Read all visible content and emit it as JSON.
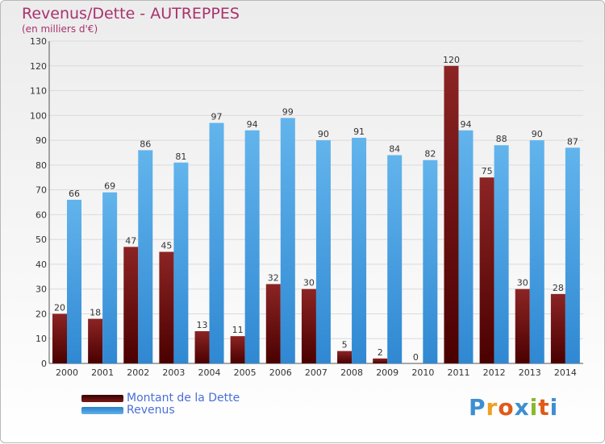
{
  "header": {
    "title": "Revenus/Dette - AUTREPPES",
    "subtitle": "(en milliers d'€)"
  },
  "legend": {
    "debt_label": "Montant de la Dette",
    "revenue_label": "Revenus"
  },
  "logo": {
    "letters": [
      "P",
      "r",
      "o",
      "x",
      "i",
      "t",
      "i"
    ],
    "colors": [
      "#3d8fd0",
      "#f0a020",
      "#e05a1a",
      "#3d8fd0",
      "#88b830",
      "#e05a1a",
      "#3d8fd0"
    ]
  },
  "colors": {
    "debt_top": "#8c2424",
    "debt_bottom": "#4a0000",
    "revenue_top": "#62b4ec",
    "revenue_bottom": "#2f88d2",
    "grid": "#dadada",
    "axis_text": "#333333"
  },
  "chart_data": {
    "type": "bar",
    "categories": [
      "2000",
      "2001",
      "2002",
      "2003",
      "2004",
      "2005",
      "2006",
      "2007",
      "2008",
      "2009",
      "2010",
      "2011",
      "2012",
      "2013",
      "2014"
    ],
    "series": [
      {
        "name": "Montant de la Dette",
        "values": [
          20,
          18,
          47,
          45,
          13,
          11,
          32,
          30,
          5,
          2,
          0,
          120,
          75,
          30,
          28
        ]
      },
      {
        "name": "Revenus",
        "values": [
          66,
          69,
          86,
          81,
          97,
          94,
          99,
          90,
          91,
          84,
          82,
          94,
          88,
          90,
          87
        ]
      }
    ],
    "ylim": [
      0,
      130
    ],
    "yticks": [
      0,
      10,
      20,
      30,
      40,
      50,
      60,
      70,
      80,
      90,
      100,
      110,
      120,
      130
    ],
    "grid": true,
    "legend_position": "bottom-left"
  }
}
